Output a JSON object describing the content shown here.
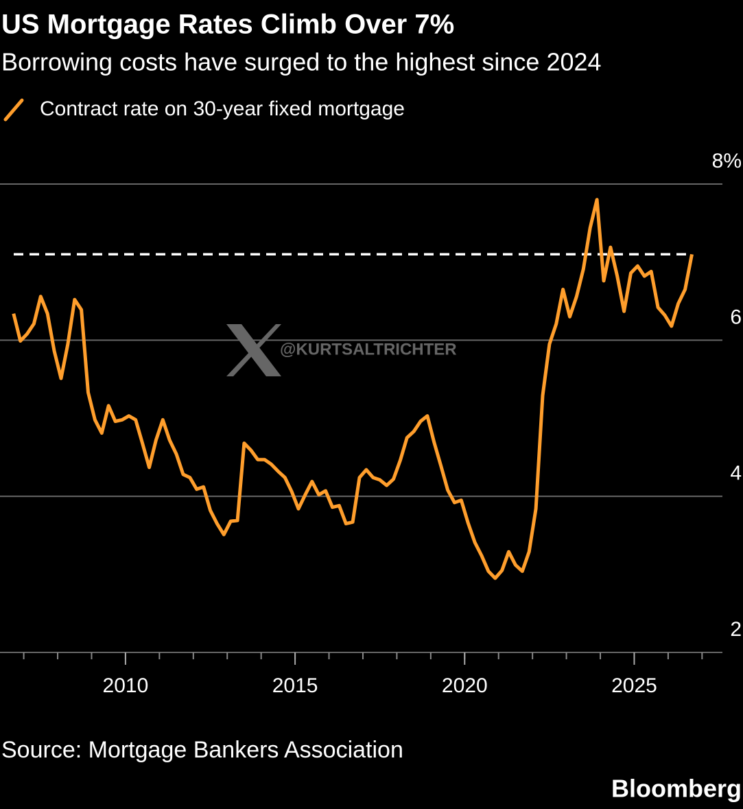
{
  "chart_data": {
    "type": "line",
    "title": "US Mortgage Rates Climb Over 7%",
    "subtitle": "Borrowing costs have surged to the highest since 2024",
    "source": "Source: Mortgage Bankers Association",
    "brand": "Bloomberg",
    "watermark": "@KURTSALTRICHTER",
    "x": [
      2006.7,
      2006.9,
      2007.1,
      2007.3,
      2007.5,
      2007.7,
      2007.9,
      2008.1,
      2008.3,
      2008.5,
      2008.7,
      2008.9,
      2009.1,
      2009.3,
      2009.5,
      2009.7,
      2009.9,
      2010.1,
      2010.3,
      2010.5,
      2010.7,
      2010.9,
      2011.1,
      2011.3,
      2011.5,
      2011.7,
      2011.9,
      2012.1,
      2012.3,
      2012.5,
      2012.7,
      2012.9,
      2013.1,
      2013.3,
      2013.5,
      2013.7,
      2013.9,
      2014.1,
      2014.3,
      2014.5,
      2014.7,
      2014.9,
      2015.1,
      2015.3,
      2015.5,
      2015.7,
      2015.9,
      2016.1,
      2016.3,
      2016.5,
      2016.7,
      2016.9,
      2017.1,
      2017.3,
      2017.5,
      2017.7,
      2017.9,
      2018.1,
      2018.3,
      2018.5,
      2018.7,
      2018.9,
      2019.1,
      2019.3,
      2019.5,
      2019.7,
      2019.9,
      2020.1,
      2020.3,
      2020.5,
      2020.7,
      2020.9,
      2021.1,
      2021.3,
      2021.5,
      2021.7,
      2021.9,
      2022.1,
      2022.3,
      2022.5,
      2022.7,
      2022.9,
      2023.1,
      2023.3,
      2023.5,
      2023.7,
      2023.9,
      2024.1,
      2024.3,
      2024.5,
      2024.7,
      2024.9,
      2025.1,
      2025.3,
      2025.5,
      2025.7,
      2025.9,
      2026.1,
      2026.3,
      2026.5,
      2026.7
    ],
    "series": [
      {
        "name": "Contract rate on 30-year fixed mortgage",
        "color": "#ff9e2c",
        "values": [
          6.34,
          5.99,
          6.08,
          6.21,
          6.56,
          6.34,
          5.86,
          5.51,
          5.95,
          6.52,
          6.39,
          5.33,
          4.98,
          4.81,
          5.16,
          4.96,
          4.98,
          5.03,
          4.98,
          4.68,
          4.37,
          4.72,
          4.98,
          4.72,
          4.54,
          4.28,
          4.24,
          4.09,
          4.12,
          3.82,
          3.65,
          3.51,
          3.68,
          3.69,
          4.68,
          4.59,
          4.47,
          4.47,
          4.41,
          4.32,
          4.24,
          4.06,
          3.84,
          4.02,
          4.19,
          4.02,
          4.07,
          3.86,
          3.88,
          3.65,
          3.67,
          4.24,
          4.34,
          4.24,
          4.21,
          4.14,
          4.22,
          4.46,
          4.75,
          4.83,
          4.96,
          5.03,
          4.69,
          4.39,
          4.08,
          3.92,
          3.95,
          3.66,
          3.41,
          3.24,
          3.04,
          2.95,
          3.05,
          3.29,
          3.12,
          3.04,
          3.29,
          3.84,
          5.29,
          5.95,
          6.21,
          6.65,
          6.3,
          6.56,
          6.91,
          7.44,
          7.8,
          6.76,
          7.19,
          6.82,
          6.37,
          6.86,
          6.95,
          6.82,
          6.88,
          6.42,
          6.32,
          6.18,
          6.47,
          6.65,
          7.1
        ]
      }
    ],
    "reference_line": {
      "value": 7.1,
      "color": "#ffffff",
      "dashed": true
    },
    "xlim": [
      2006.3,
      2027.6
    ],
    "xticks": [
      2010,
      2015,
      2020,
      2025
    ],
    "ylim": [
      2,
      8
    ],
    "yticks": [
      2,
      4,
      6,
      {
        "value": 8,
        "label": "8%"
      }
    ],
    "grid": true
  }
}
